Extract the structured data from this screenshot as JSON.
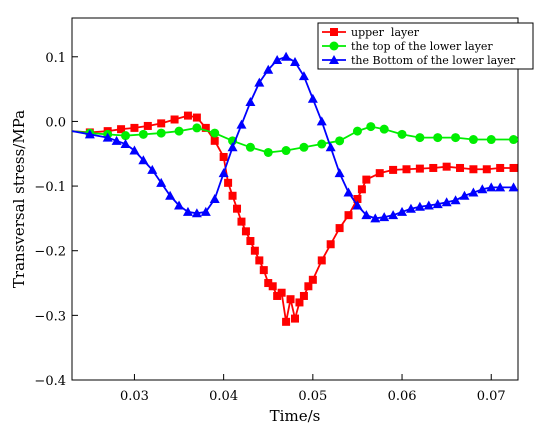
{
  "chart_data": {
    "type": "line",
    "xlabel": "Time/s",
    "ylabel": "Transversal stress/MPa",
    "xlim": [
      0.023,
      0.073
    ],
    "ylim": [
      -0.4,
      0.16
    ],
    "xticks": [
      0.03,
      0.04,
      0.05,
      0.06,
      0.07
    ],
    "xtick_labels": [
      "0.03",
      "0.04",
      "0.05",
      "0.06",
      "0.07"
    ],
    "yticks": [
      -0.4,
      -0.3,
      -0.2,
      -0.1,
      0.0,
      0.1
    ],
    "ytick_labels": [
      "-0.4",
      "-0.3",
      "-0.2",
      "-0.1",
      "0.0",
      "0.1"
    ],
    "grid": false,
    "legend_position": "top-right",
    "series": [
      {
        "name": "upper  layer",
        "color": "#ff0000",
        "marker": "square",
        "x": [
          0.023,
          0.025,
          0.027,
          0.0285,
          0.03,
          0.0315,
          0.033,
          0.0345,
          0.036,
          0.037,
          0.038,
          0.039,
          0.04,
          0.0405,
          0.041,
          0.0415,
          0.042,
          0.0425,
          0.043,
          0.0435,
          0.044,
          0.0445,
          0.045,
          0.0455,
          0.046,
          0.0465,
          0.047,
          0.0475,
          0.048,
          0.0485,
          0.049,
          0.0495,
          0.05,
          0.051,
          0.052,
          0.053,
          0.054,
          0.055,
          0.0555,
          0.056,
          0.0575,
          0.059,
          0.0605,
          0.062,
          0.0635,
          0.065,
          0.0665,
          0.068,
          0.0695,
          0.071,
          0.0725
        ],
        "y": [
          -0.015,
          -0.017,
          -0.015,
          -0.012,
          -0.01,
          -0.007,
          -0.003,
          0.003,
          0.009,
          0.006,
          -0.01,
          -0.03,
          -0.055,
          -0.095,
          -0.115,
          -0.135,
          -0.155,
          -0.17,
          -0.185,
          -0.2,
          -0.215,
          -0.23,
          -0.25,
          -0.255,
          -0.27,
          -0.265,
          -0.31,
          -0.275,
          -0.305,
          -0.28,
          -0.27,
          -0.255,
          -0.245,
          -0.215,
          -0.19,
          -0.165,
          -0.145,
          -0.12,
          -0.105,
          -0.09,
          -0.08,
          -0.075,
          -0.074,
          -0.073,
          -0.072,
          -0.07,
          -0.072,
          -0.074,
          -0.074,
          -0.072,
          -0.072
        ]
      },
      {
        "name": "the top of the lower layer",
        "color": "#00ee00",
        "marker": "circle",
        "x": [
          0.023,
          0.025,
          0.027,
          0.029,
          0.031,
          0.033,
          0.035,
          0.037,
          0.039,
          0.041,
          0.043,
          0.045,
          0.047,
          0.049,
          0.051,
          0.053,
          0.055,
          0.0565,
          0.058,
          0.06,
          0.062,
          0.064,
          0.066,
          0.068,
          0.07,
          0.0725
        ],
        "y": [
          -0.015,
          -0.018,
          -0.02,
          -0.022,
          -0.02,
          -0.018,
          -0.015,
          -0.01,
          -0.018,
          -0.03,
          -0.04,
          -0.048,
          -0.045,
          -0.04,
          -0.035,
          -0.03,
          -0.015,
          -0.008,
          -0.012,
          -0.02,
          -0.025,
          -0.025,
          -0.025,
          -0.028,
          -0.028,
          -0.028
        ]
      },
      {
        "name": "the Bottom of the lower layer",
        "color": "#0000ff",
        "marker": "triangle",
        "x": [
          0.023,
          0.025,
          0.027,
          0.028,
          0.029,
          0.03,
          0.031,
          0.032,
          0.033,
          0.034,
          0.035,
          0.036,
          0.037,
          0.038,
          0.039,
          0.04,
          0.041,
          0.042,
          0.043,
          0.044,
          0.045,
          0.046,
          0.047,
          0.048,
          0.049,
          0.05,
          0.051,
          0.052,
          0.053,
          0.054,
          0.055,
          0.056,
          0.057,
          0.058,
          0.059,
          0.06,
          0.061,
          0.062,
          0.063,
          0.064,
          0.065,
          0.066,
          0.067,
          0.068,
          0.069,
          0.07,
          0.071,
          0.0725
        ],
        "y": [
          -0.015,
          -0.02,
          -0.025,
          -0.03,
          -0.035,
          -0.045,
          -0.06,
          -0.075,
          -0.095,
          -0.115,
          -0.13,
          -0.14,
          -0.142,
          -0.14,
          -0.12,
          -0.08,
          -0.04,
          -0.005,
          0.03,
          0.06,
          0.08,
          0.095,
          0.1,
          0.092,
          0.07,
          0.035,
          0.0,
          -0.04,
          -0.08,
          -0.11,
          -0.13,
          -0.145,
          -0.15,
          -0.148,
          -0.145,
          -0.14,
          -0.135,
          -0.132,
          -0.13,
          -0.128,
          -0.125,
          -0.122,
          -0.115,
          -0.11,
          -0.105,
          -0.102,
          -0.102,
          -0.102
        ]
      }
    ]
  }
}
